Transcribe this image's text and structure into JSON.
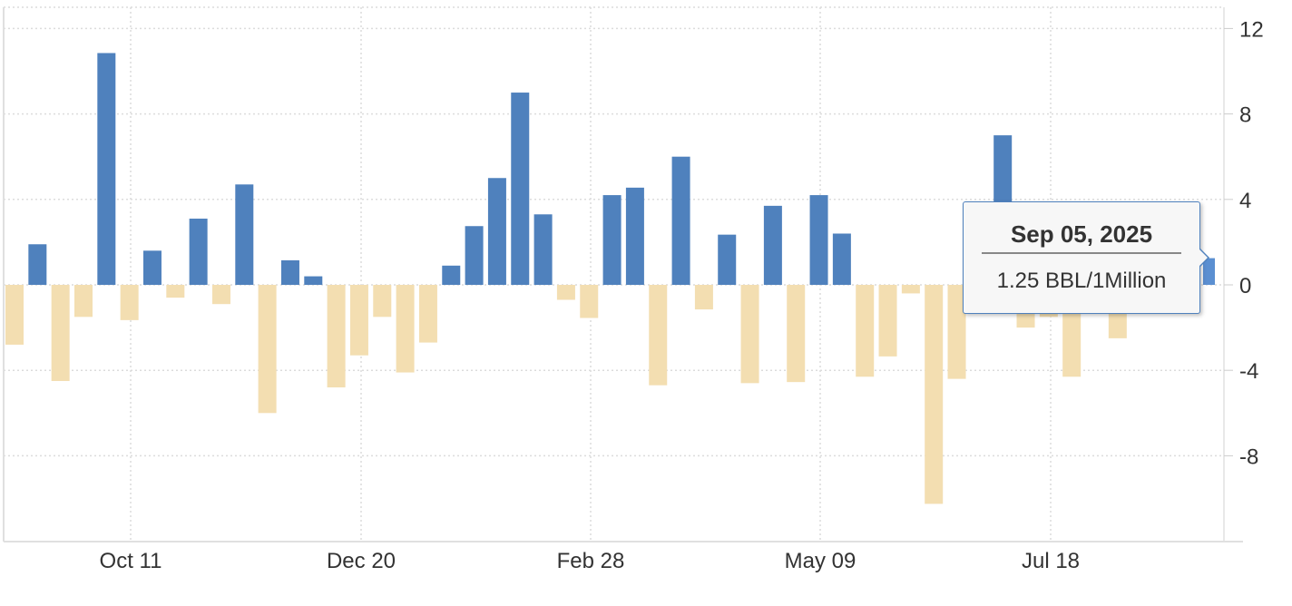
{
  "chart_data": {
    "type": "bar",
    "title": "",
    "xlabel": "",
    "ylabel": "",
    "unit": "BBL/1Million",
    "ylim": [
      -12,
      12.5
    ],
    "yticks": [
      12,
      8,
      4,
      0,
      -4,
      -8
    ],
    "xtick_labels": [
      "Oct 11",
      "Dec 20",
      "Feb 28",
      "May 09",
      "Jul 18"
    ],
    "grid": true,
    "legend": null,
    "colors": {
      "positive": "#4f81bd",
      "negative": "#f3deb1",
      "highlight": "#5b8fd1"
    },
    "values": [
      -2.8,
      1.9,
      -4.5,
      -1.5,
      10.85,
      -1.65,
      1.6,
      -0.6,
      3.1,
      -0.9,
      4.7,
      -6.0,
      1.15,
      0.4,
      -4.8,
      -3.3,
      -1.5,
      -4.1,
      -2.7,
      0.9,
      2.75,
      5.0,
      9.0,
      3.3,
      -0.7,
      -1.55,
      4.2,
      4.55,
      -4.7,
      6.0,
      -1.15,
      2.35,
      -4.6,
      3.7,
      -4.55,
      4.2,
      2.4,
      -4.3,
      -3.35,
      -0.4,
      -10.25,
      -4.4,
      -1.0,
      7.0,
      -2.0,
      -1.5,
      -4.3,
      -1.0,
      -2.5,
      -1.0,
      1.25
    ],
    "highlighted_point": {
      "date": "Sep 05, 2025",
      "value": 1.25
    }
  },
  "tooltip": {
    "date": "Sep 05, 2025",
    "value_label": "1.25 BBL/1Million"
  }
}
